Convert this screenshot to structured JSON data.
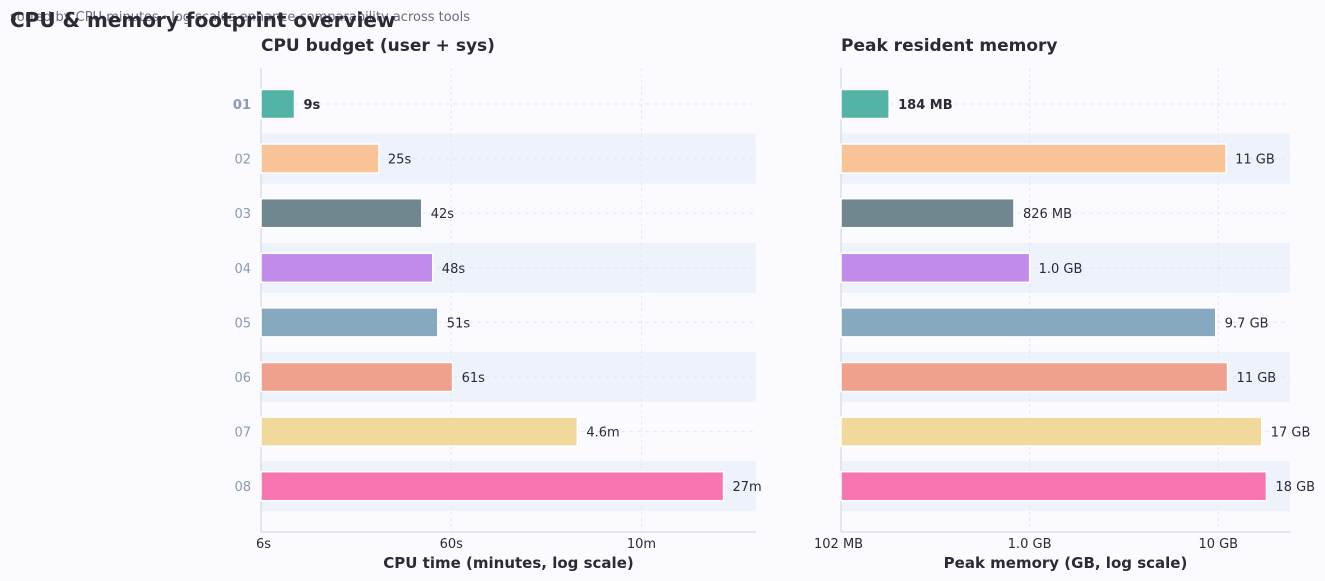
{
  "header": {
    "title": "CPU & memory footprint overview",
    "subtitle": "sorted by CPU minutes · log scales enhance comparability across tools"
  },
  "chart_data": [
    {
      "type": "bar",
      "orientation": "horizontal",
      "title": "CPU budget (user + sys)",
      "xlabel": "CPU time (minutes, log scale)",
      "x_scale": "log",
      "xlim": [
        0.1,
        40
      ],
      "x_ticks": [
        {
          "value": 0.1,
          "label": "6s"
        },
        {
          "value": 1,
          "label": "60s"
        },
        {
          "value": 10,
          "label": "10m"
        }
      ],
      "categories": [
        "01",
        "02",
        "03",
        "04",
        "05",
        "06",
        "07",
        "08"
      ],
      "values": [
        0.15,
        0.4167,
        0.7,
        0.8,
        0.85,
        1.0167,
        4.6,
        27
      ],
      "value_labels": [
        "9s",
        "25s",
        "42s",
        "48s",
        "51s",
        "61s",
        "4.6m",
        "27m"
      ],
      "colors": [
        "#52b3a6",
        "#f9c398",
        "#718790",
        "#c08be9",
        "#87a9bf",
        "#f0a18e",
        "#f1d89b",
        "#f775b1"
      ],
      "highlight_index": 0,
      "grid": true
    },
    {
      "type": "bar",
      "orientation": "horizontal",
      "title": "Peak resident memory",
      "xlabel": "Peak memory (GB, log scale)",
      "x_scale": "log",
      "xlim": [
        0.1,
        24
      ],
      "x_ticks": [
        {
          "value": 0.1,
          "label": "102 MB"
        },
        {
          "value": 1,
          "label": "1.0 GB"
        },
        {
          "value": 10,
          "label": "10 GB"
        }
      ],
      "categories": [
        "01",
        "02",
        "03",
        "04",
        "05",
        "06",
        "07",
        "08"
      ],
      "values": [
        0.18,
        11,
        0.826,
        1.0,
        9.7,
        11.2,
        17,
        18
      ],
      "value_labels": [
        "184 MB",
        "11 GB",
        "826 MB",
        "1.0 GB",
        "9.7 GB",
        "11 GB",
        "17 GB",
        "18 GB"
      ],
      "colors": [
        "#52b3a6",
        "#f9c398",
        "#718790",
        "#c08be9",
        "#87a9bf",
        "#f0a18e",
        "#f1d89b",
        "#f775b1"
      ],
      "highlight_index": 0,
      "grid": true
    }
  ]
}
